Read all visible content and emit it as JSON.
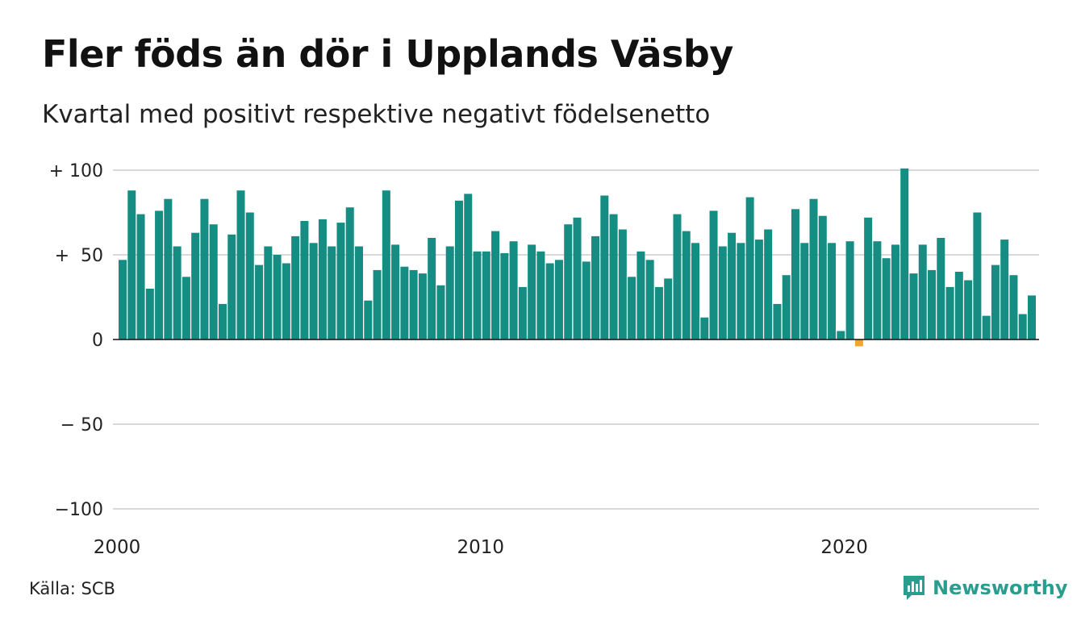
{
  "header": {
    "title": "Fler föds än dör i Upplands Väsby",
    "subtitle": "Kvartal med positivt respektive negativt födelsenetto"
  },
  "footer": {
    "source": "Källa: SCB",
    "brand": "Newsworthy"
  },
  "colors": {
    "positive": "#158d83",
    "negative": "#f4a52e",
    "brand": "#2a9d8f",
    "grid": "#d9d9d9"
  },
  "icons": {
    "brand_logo": "newsworthy-chart-bubble-icon"
  },
  "chart_data": {
    "type": "bar",
    "ylim": [
      -100,
      100
    ],
    "y_ticks": [
      {
        "value": 100,
        "label": "+ 100"
      },
      {
        "value": 50,
        "label": "+  50"
      },
      {
        "value": 0,
        "label": "0"
      },
      {
        "value": -50,
        "label": "− 50"
      },
      {
        "value": -100,
        "label": "−100"
      }
    ],
    "x_ticks": [
      {
        "index": 0,
        "label": "2000"
      },
      {
        "index": 40,
        "label": "2010"
      },
      {
        "index": 80,
        "label": "2020"
      }
    ],
    "grid": true,
    "legend": "none",
    "first_period": "2000 Q1",
    "period": "quarter",
    "values": [
      47,
      88,
      74,
      30,
      76,
      83,
      55,
      37,
      63,
      83,
      68,
      21,
      62,
      88,
      75,
      44,
      55,
      50,
      45,
      61,
      70,
      57,
      71,
      55,
      69,
      78,
      55,
      23,
      41,
      88,
      56,
      43,
      41,
      39,
      60,
      32,
      55,
      82,
      86,
      52,
      52,
      64,
      51,
      58,
      31,
      56,
      52,
      45,
      47,
      68,
      72,
      46,
      61,
      85,
      74,
      65,
      37,
      52,
      47,
      31,
      36,
      74,
      64,
      57,
      13,
      76,
      55,
      63,
      57,
      84,
      59,
      65,
      21,
      38,
      77,
      57,
      83,
      73,
      57,
      5,
      58,
      -4,
      72,
      58,
      48,
      56,
      101,
      39,
      56,
      41,
      60,
      31,
      40,
      35,
      75,
      14,
      44,
      59,
      38,
      15,
      26
    ]
  }
}
